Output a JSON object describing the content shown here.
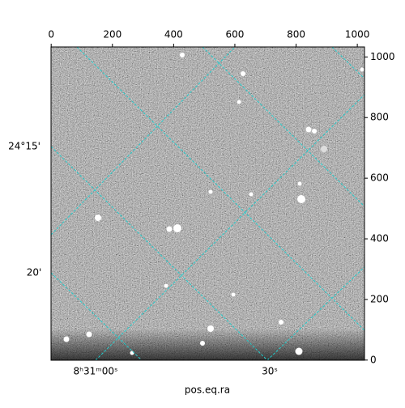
{
  "chart_data": {
    "type": "image",
    "xlabel": "pos.eq.ra",
    "xlim": [
      -0.5,
      1023.5
    ],
    "xticks": [
      0,
      200,
      400,
      600,
      800,
      1000
    ],
    "ylim": [
      -0.5,
      1033
    ],
    "yticks": [
      0,
      200,
      400,
      600,
      800,
      1000
    ],
    "ra_ticks": [
      "8ʰ31ᵐ00ˢ",
      "30ˢ"
    ],
    "dec_ticks": [
      "24°15'",
      "20'"
    ],
    "grid_color": "#22cccc"
  }
}
